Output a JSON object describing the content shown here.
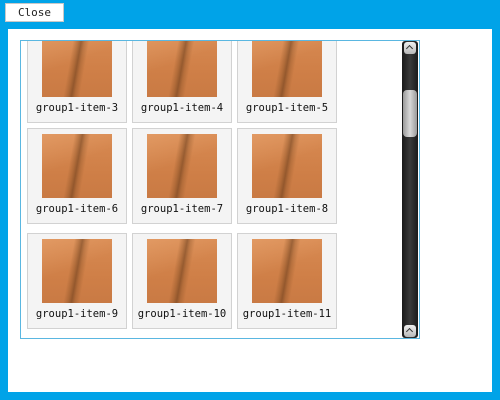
{
  "window": {
    "close_label": "Close"
  },
  "gallery": {
    "items": [
      {
        "label": "group1-item-3"
      },
      {
        "label": "group1-item-4"
      },
      {
        "label": "group1-item-5"
      },
      {
        "label": "group1-item-6"
      },
      {
        "label": "group1-item-7"
      },
      {
        "label": "group1-item-8"
      },
      {
        "label": "group1-item-9"
      },
      {
        "label": "group1-item-10"
      },
      {
        "label": "group1-item-11"
      }
    ]
  },
  "colors": {
    "frame": "#00a3e8",
    "viewport_border": "#5ab7e1",
    "item_background": "#f4f4f4",
    "thumbnail": "#d4854d",
    "scrollbar_track": "#2a2a2a"
  },
  "icons": {
    "scroll_up": "chevron-up-icon",
    "scroll_down": "chevron-up-icon"
  }
}
